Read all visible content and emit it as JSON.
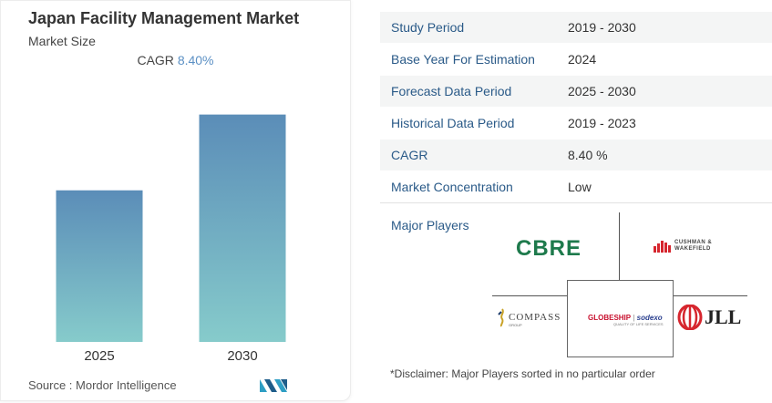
{
  "card": {
    "title": "Japan Facility Management Market",
    "subtitle": "Market Size",
    "cagr_label": "CAGR",
    "cagr_value": "8.40%",
    "source": "Source :  Mordor Intelligence",
    "logo_icon": "mordor-intelligence-logo"
  },
  "chart_data": {
    "type": "bar",
    "categories": [
      "2025",
      "2030"
    ],
    "values": [
      1.0,
      1.5
    ],
    "title": "Japan Facility Management Market",
    "subtitle": "Market Size",
    "annotation": "CAGR 8.40%",
    "xlabel": "",
    "ylabel": "",
    "ylim": [
      0,
      1.6
    ],
    "grid": false,
    "colors": {
      "top": "#5b8db8",
      "bottom": "#86cbcb"
    }
  },
  "table": {
    "rows": [
      {
        "key": "Study Period",
        "value": "2019 - 2030"
      },
      {
        "key": "Base Year For Estimation",
        "value": "2024"
      },
      {
        "key": "Forecast Data Period",
        "value": "2025 - 2030"
      },
      {
        "key": "Historical Data Period",
        "value": "2019 - 2023"
      },
      {
        "key": "CAGR",
        "value": "8.40 %"
      },
      {
        "key": "Market Concentration",
        "value": "Low"
      }
    ]
  },
  "players": {
    "label": "Major Players",
    "cbre": "CBRE",
    "cushman_line1": "CUSHMAN &",
    "cushman_line2": "WAKEFIELD",
    "compass": "COMPASS",
    "compass_group": "GROUP",
    "globeship": "GLOBESHIP",
    "sodexo": "sodexo",
    "sodexo_sub": "QUALITY OF LIFE SERVICES",
    "jll": "JLL"
  },
  "disclaimer": "*Disclaimer: Major Players sorted in no particular order",
  "colors": {
    "accent": "#2a5a88",
    "cbre_green": "#1e7a4c",
    "cagr_blue": "#5b90c4"
  }
}
